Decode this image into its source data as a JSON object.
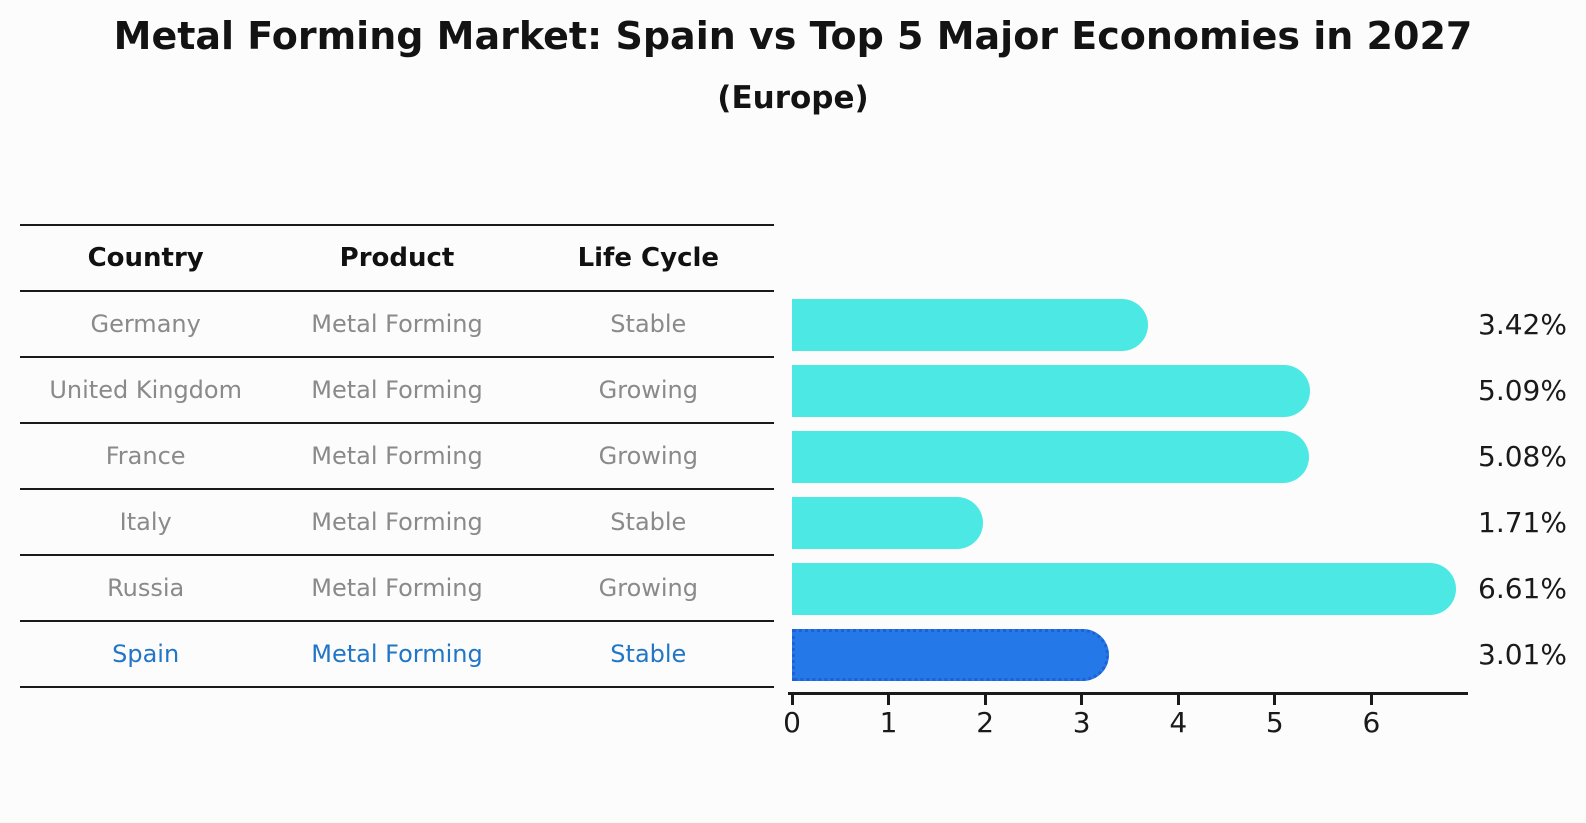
{
  "title": "Metal Forming Market: Spain vs Top 5 Major Economies in 2027",
  "subtitle": "(Europe)",
  "table": {
    "headers": [
      "Country",
      "Product",
      "Life Cycle"
    ],
    "rows": [
      {
        "country": "Germany",
        "product": "Metal Forming",
        "life_cycle": "Stable",
        "highlight": false
      },
      {
        "country": "United Kingdom",
        "product": "Metal Forming",
        "life_cycle": "Growing",
        "highlight": false
      },
      {
        "country": "France",
        "product": "Metal Forming",
        "life_cycle": "Growing",
        "highlight": false
      },
      {
        "country": "Italy",
        "product": "Metal Forming",
        "life_cycle": "Stable",
        "highlight": false
      },
      {
        "country": "Russia",
        "product": "Metal Forming",
        "life_cycle": "Growing",
        "highlight": false
      },
      {
        "country": "Spain",
        "product": "Metal Forming",
        "life_cycle": "Stable",
        "highlight": true
      }
    ]
  },
  "chart_data": {
    "type": "bar",
    "orientation": "horizontal",
    "title": "Metal Forming Market: Spain vs Top 5 Major Economies in 2027",
    "subtitle": "(Europe)",
    "categories": [
      "Germany",
      "United Kingdom",
      "France",
      "Italy",
      "Russia",
      "Spain"
    ],
    "values": [
      3.42,
      5.09,
      5.08,
      1.71,
      6.61,
      3.01
    ],
    "value_labels": [
      "3.42%",
      "5.09%",
      "5.08%",
      "1.71%",
      "6.61%",
      "3.01%"
    ],
    "x_ticks": [
      0,
      1,
      2,
      3,
      4,
      5,
      6
    ],
    "xlim": [
      0,
      7
    ],
    "grid": false,
    "legend": "none",
    "highlight_index": 5
  },
  "colors": {
    "background": "#fcfcfc",
    "bar": "#4ce9e4",
    "highlight_bar": "#2478e8",
    "highlight_border": "#1e60d5",
    "highlight_text": "#2176c7",
    "table_text": "#8a8a8a",
    "axis": "#1a1a1a"
  }
}
